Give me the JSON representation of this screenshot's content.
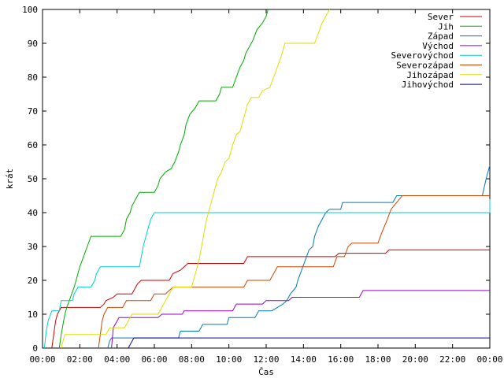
{
  "chart_data": {
    "type": "line",
    "xlabel": "Čas",
    "ylabel": "krát",
    "xlim": [
      0,
      24
    ],
    "ylim": [
      0,
      100
    ],
    "grid": false,
    "legend_position": "top-right",
    "x_ticks": [
      {
        "value": 0,
        "label": "00:00"
      },
      {
        "value": 2,
        "label": "02:00"
      },
      {
        "value": 4,
        "label": "04:00"
      },
      {
        "value": 6,
        "label": "06:00"
      },
      {
        "value": 8,
        "label": "08:00"
      },
      {
        "value": 10,
        "label": "10:00"
      },
      {
        "value": 12,
        "label": "12:00"
      },
      {
        "value": 14,
        "label": "14:00"
      },
      {
        "value": 16,
        "label": "16:00"
      },
      {
        "value": 18,
        "label": "18:00"
      },
      {
        "value": 20,
        "label": "20:00"
      },
      {
        "value": 22,
        "label": "22:00"
      },
      {
        "value": 24,
        "label": "00:00"
      }
    ],
    "y_ticks": [
      {
        "value": 0,
        "label": "0"
      },
      {
        "value": 10,
        "label": "10"
      },
      {
        "value": 20,
        "label": "20"
      },
      {
        "value": 30,
        "label": "30"
      },
      {
        "value": 40,
        "label": "40"
      },
      {
        "value": 50,
        "label": "50"
      },
      {
        "value": 60,
        "label": "60"
      },
      {
        "value": 70,
        "label": "70"
      },
      {
        "value": 80,
        "label": "80"
      },
      {
        "value": 90,
        "label": "90"
      },
      {
        "value": 100,
        "label": "100"
      }
    ],
    "series": [
      {
        "name": "Sever",
        "color": "#cc0000",
        "points": [
          [
            0.5,
            0
          ],
          [
            0.6,
            4
          ],
          [
            0.7,
            8
          ],
          [
            0.8,
            10
          ],
          [
            0.9,
            11
          ],
          [
            1.0,
            12
          ],
          [
            3.1,
            12
          ],
          [
            3.3,
            13
          ],
          [
            3.4,
            14
          ],
          [
            3.8,
            15
          ],
          [
            4.0,
            16
          ],
          [
            4.8,
            16
          ],
          [
            5.0,
            18
          ],
          [
            5.1,
            19
          ],
          [
            5.3,
            20
          ],
          [
            6.8,
            20
          ],
          [
            7.0,
            22
          ],
          [
            7.4,
            23
          ],
          [
            7.6,
            24
          ],
          [
            7.8,
            25
          ],
          [
            10.8,
            25
          ],
          [
            11.0,
            27
          ],
          [
            15.7,
            27
          ],
          [
            15.9,
            28
          ],
          [
            18.4,
            28
          ],
          [
            18.6,
            29
          ],
          [
            24,
            29
          ]
        ]
      },
      {
        "name": "Jih",
        "color": "#00aa00",
        "points": [
          [
            0.9,
            0
          ],
          [
            1.0,
            4
          ],
          [
            1.1,
            7
          ],
          [
            1.2,
            10
          ],
          [
            1.3,
            12
          ],
          [
            1.5,
            15
          ],
          [
            1.7,
            18
          ],
          [
            1.8,
            20
          ],
          [
            2.0,
            24
          ],
          [
            2.2,
            27
          ],
          [
            2.4,
            30
          ],
          [
            2.6,
            33
          ],
          [
            4.2,
            33
          ],
          [
            4.4,
            35
          ],
          [
            4.5,
            38
          ],
          [
            4.7,
            40
          ],
          [
            4.8,
            42
          ],
          [
            5.0,
            44
          ],
          [
            5.2,
            46
          ],
          [
            6.0,
            46
          ],
          [
            6.2,
            48
          ],
          [
            6.3,
            50
          ],
          [
            6.6,
            52
          ],
          [
            6.9,
            53
          ],
          [
            7.1,
            55
          ],
          [
            7.3,
            58
          ],
          [
            7.4,
            60
          ],
          [
            7.6,
            63
          ],
          [
            7.7,
            66
          ],
          [
            7.9,
            69
          ],
          [
            8.2,
            71
          ],
          [
            8.4,
            73
          ],
          [
            9.3,
            73
          ],
          [
            9.5,
            75
          ],
          [
            9.6,
            77
          ],
          [
            10.2,
            77
          ],
          [
            10.4,
            80
          ],
          [
            10.6,
            83
          ],
          [
            10.8,
            85
          ],
          [
            10.9,
            87
          ],
          [
            11.1,
            89
          ],
          [
            11.3,
            91
          ],
          [
            11.5,
            94
          ],
          [
            11.8,
            96
          ],
          [
            12.0,
            98
          ],
          [
            12.1,
            100
          ]
        ]
      },
      {
        "name": "Západ",
        "color": "#0077bb",
        "points": [
          [
            3.5,
            0
          ],
          [
            3.6,
            2
          ],
          [
            3.7,
            3
          ],
          [
            7.3,
            3
          ],
          [
            7.4,
            5
          ],
          [
            8.4,
            5
          ],
          [
            8.6,
            7
          ],
          [
            9.9,
            7
          ],
          [
            10.0,
            9
          ],
          [
            11.4,
            9
          ],
          [
            11.6,
            11
          ],
          [
            12.3,
            11
          ],
          [
            12.6,
            12
          ],
          [
            12.9,
            13
          ],
          [
            13.1,
            14
          ],
          [
            13.3,
            16
          ],
          [
            13.6,
            18
          ],
          [
            13.7,
            20
          ],
          [
            13.9,
            23
          ],
          [
            14.1,
            26
          ],
          [
            14.3,
            29
          ],
          [
            14.5,
            30
          ],
          [
            14.6,
            33
          ],
          [
            14.8,
            36
          ],
          [
            15.0,
            38
          ],
          [
            15.2,
            40
          ],
          [
            15.4,
            41
          ],
          [
            16.0,
            41
          ],
          [
            16.1,
            43
          ],
          [
            18.8,
            43
          ],
          [
            19.0,
            45
          ],
          [
            23.6,
            45
          ],
          [
            23.8,
            50
          ],
          [
            24,
            54
          ]
        ]
      },
      {
        "name": "Východ",
        "color": "#9900cc",
        "points": [
          [
            3.7,
            0
          ],
          [
            3.8,
            6
          ],
          [
            4.0,
            8
          ],
          [
            4.1,
            9
          ],
          [
            6.2,
            9
          ],
          [
            6.4,
            10
          ],
          [
            7.5,
            10
          ],
          [
            7.6,
            11
          ],
          [
            10.2,
            11
          ],
          [
            10.4,
            13
          ],
          [
            11.8,
            13
          ],
          [
            12.0,
            14
          ],
          [
            13.2,
            14
          ],
          [
            13.4,
            15
          ],
          [
            17.0,
            15
          ],
          [
            17.2,
            17
          ],
          [
            24,
            17
          ]
        ]
      },
      {
        "name": "Severovýchod",
        "color": "#00cccc",
        "points": [
          [
            0.1,
            0
          ],
          [
            0.2,
            5
          ],
          [
            0.3,
            8
          ],
          [
            0.5,
            11
          ],
          [
            0.9,
            11
          ],
          [
            1.0,
            14
          ],
          [
            1.6,
            14
          ],
          [
            1.7,
            16
          ],
          [
            1.9,
            18
          ],
          [
            2.6,
            18
          ],
          [
            2.8,
            20
          ],
          [
            2.9,
            22
          ],
          [
            3.1,
            24
          ],
          [
            5.2,
            24
          ],
          [
            5.4,
            30
          ],
          [
            5.6,
            34
          ],
          [
            5.8,
            38
          ],
          [
            6.0,
            40
          ],
          [
            24,
            40
          ],
          [
            24,
            44
          ]
        ]
      },
      {
        "name": "Severozápad",
        "color": "#cc4400",
        "points": [
          [
            3.0,
            0
          ],
          [
            3.1,
            4
          ],
          [
            3.2,
            8
          ],
          [
            3.3,
            10
          ],
          [
            3.5,
            12
          ],
          [
            4.3,
            12
          ],
          [
            4.5,
            14
          ],
          [
            5.8,
            14
          ],
          [
            6.0,
            16
          ],
          [
            6.6,
            16
          ],
          [
            6.8,
            17
          ],
          [
            7.0,
            18
          ],
          [
            10.8,
            18
          ],
          [
            11.0,
            20
          ],
          [
            12.2,
            20
          ],
          [
            12.4,
            22
          ],
          [
            12.6,
            24
          ],
          [
            15.6,
            24
          ],
          [
            15.8,
            27
          ],
          [
            16.2,
            27
          ],
          [
            16.4,
            30
          ],
          [
            16.6,
            31
          ],
          [
            18.0,
            31
          ],
          [
            18.2,
            34
          ],
          [
            18.5,
            38
          ],
          [
            18.7,
            41
          ],
          [
            19.0,
            43
          ],
          [
            19.3,
            45
          ],
          [
            24,
            45
          ]
        ]
      },
      {
        "name": "Jihozápad",
        "color": "#dddd00",
        "points": [
          [
            1.0,
            0
          ],
          [
            1.1,
            2
          ],
          [
            1.2,
            4
          ],
          [
            3.4,
            4
          ],
          [
            3.6,
            6
          ],
          [
            4.4,
            6
          ],
          [
            4.6,
            8
          ],
          [
            4.8,
            10
          ],
          [
            6.2,
            10
          ],
          [
            6.4,
            12
          ],
          [
            6.6,
            14
          ],
          [
            6.8,
            16
          ],
          [
            7.0,
            18
          ],
          [
            8.0,
            18
          ],
          [
            8.2,
            22
          ],
          [
            8.4,
            26
          ],
          [
            8.6,
            32
          ],
          [
            8.8,
            38
          ],
          [
            9.0,
            42
          ],
          [
            9.2,
            46
          ],
          [
            9.4,
            50
          ],
          [
            9.6,
            52
          ],
          [
            9.8,
            55
          ],
          [
            10.0,
            56
          ],
          [
            10.2,
            60
          ],
          [
            10.4,
            63
          ],
          [
            10.6,
            64
          ],
          [
            10.8,
            68
          ],
          [
            11.0,
            72
          ],
          [
            11.2,
            74
          ],
          [
            11.6,
            74
          ],
          [
            11.8,
            76
          ],
          [
            12.2,
            77
          ],
          [
            12.4,
            80
          ],
          [
            12.6,
            83
          ],
          [
            12.8,
            86
          ],
          [
            13.0,
            90
          ],
          [
            14.6,
            90
          ],
          [
            14.8,
            93
          ],
          [
            15.0,
            96
          ],
          [
            15.2,
            98
          ],
          [
            15.4,
            100
          ]
        ]
      },
      {
        "name": "Jihovýchod",
        "color": "#0000aa",
        "points": [
          [
            4.6,
            0
          ],
          [
            4.7,
            1
          ],
          [
            4.8,
            2
          ],
          [
            4.9,
            3
          ],
          [
            24,
            3
          ]
        ]
      }
    ]
  }
}
